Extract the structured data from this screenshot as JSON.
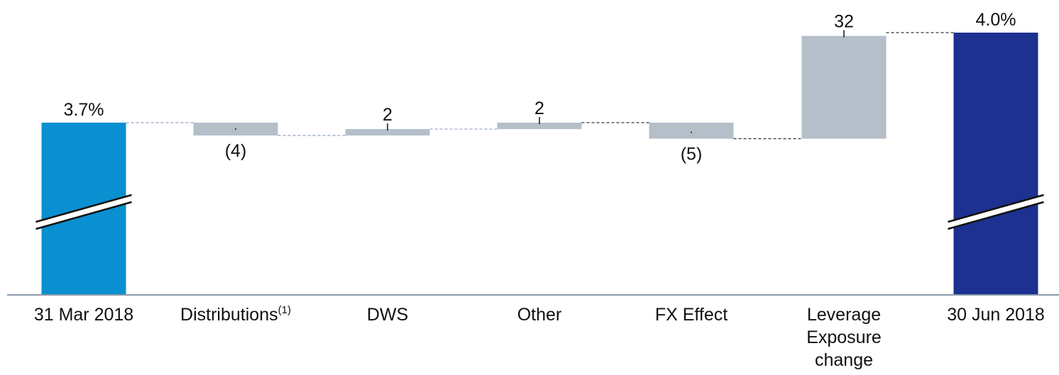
{
  "chart_data": {
    "type": "bar",
    "subtype": "waterfall",
    "categories": [
      {
        "lines": [
          "31 Mar 2018"
        ]
      },
      {
        "lines": [
          "Distributions"
        ],
        "sup": "(1)"
      },
      {
        "lines": [
          "DWS"
        ]
      },
      {
        "lines": [
          "Other"
        ]
      },
      {
        "lines": [
          "FX Effect"
        ]
      },
      {
        "lines": [
          "Leverage",
          "Exposure",
          "change"
        ]
      },
      {
        "lines": [
          "30 Jun 2018"
        ]
      }
    ],
    "bars": [
      {
        "kind": "total",
        "value": 3.7,
        "label": "3.7%",
        "color": "#0a8fd1"
      },
      {
        "kind": "delta",
        "value": -4,
        "label": "(4)",
        "color": "#b4bfc9"
      },
      {
        "kind": "delta",
        "value": 2,
        "label": "2",
        "color": "#b4bfc9"
      },
      {
        "kind": "delta",
        "value": 2,
        "label": "2",
        "color": "#b4bfc9"
      },
      {
        "kind": "delta",
        "value": -5,
        "label": "(5)",
        "color": "#b4bfc9"
      },
      {
        "kind": "delta",
        "value": 32,
        "label": "32",
        "color": "#b4bfc9"
      },
      {
        "kind": "total",
        "value": 4.0,
        "label": "4.0%",
        "color": "#1c3190"
      }
    ],
    "unit_note": "",
    "axis_break": true,
    "grid": false,
    "legend": "none",
    "colors": {
      "start": "#0a8fd1",
      "end": "#1c3190",
      "delta": "#b4bfc9",
      "axis": "#8a9aaa",
      "connector": "#333333"
    }
  }
}
